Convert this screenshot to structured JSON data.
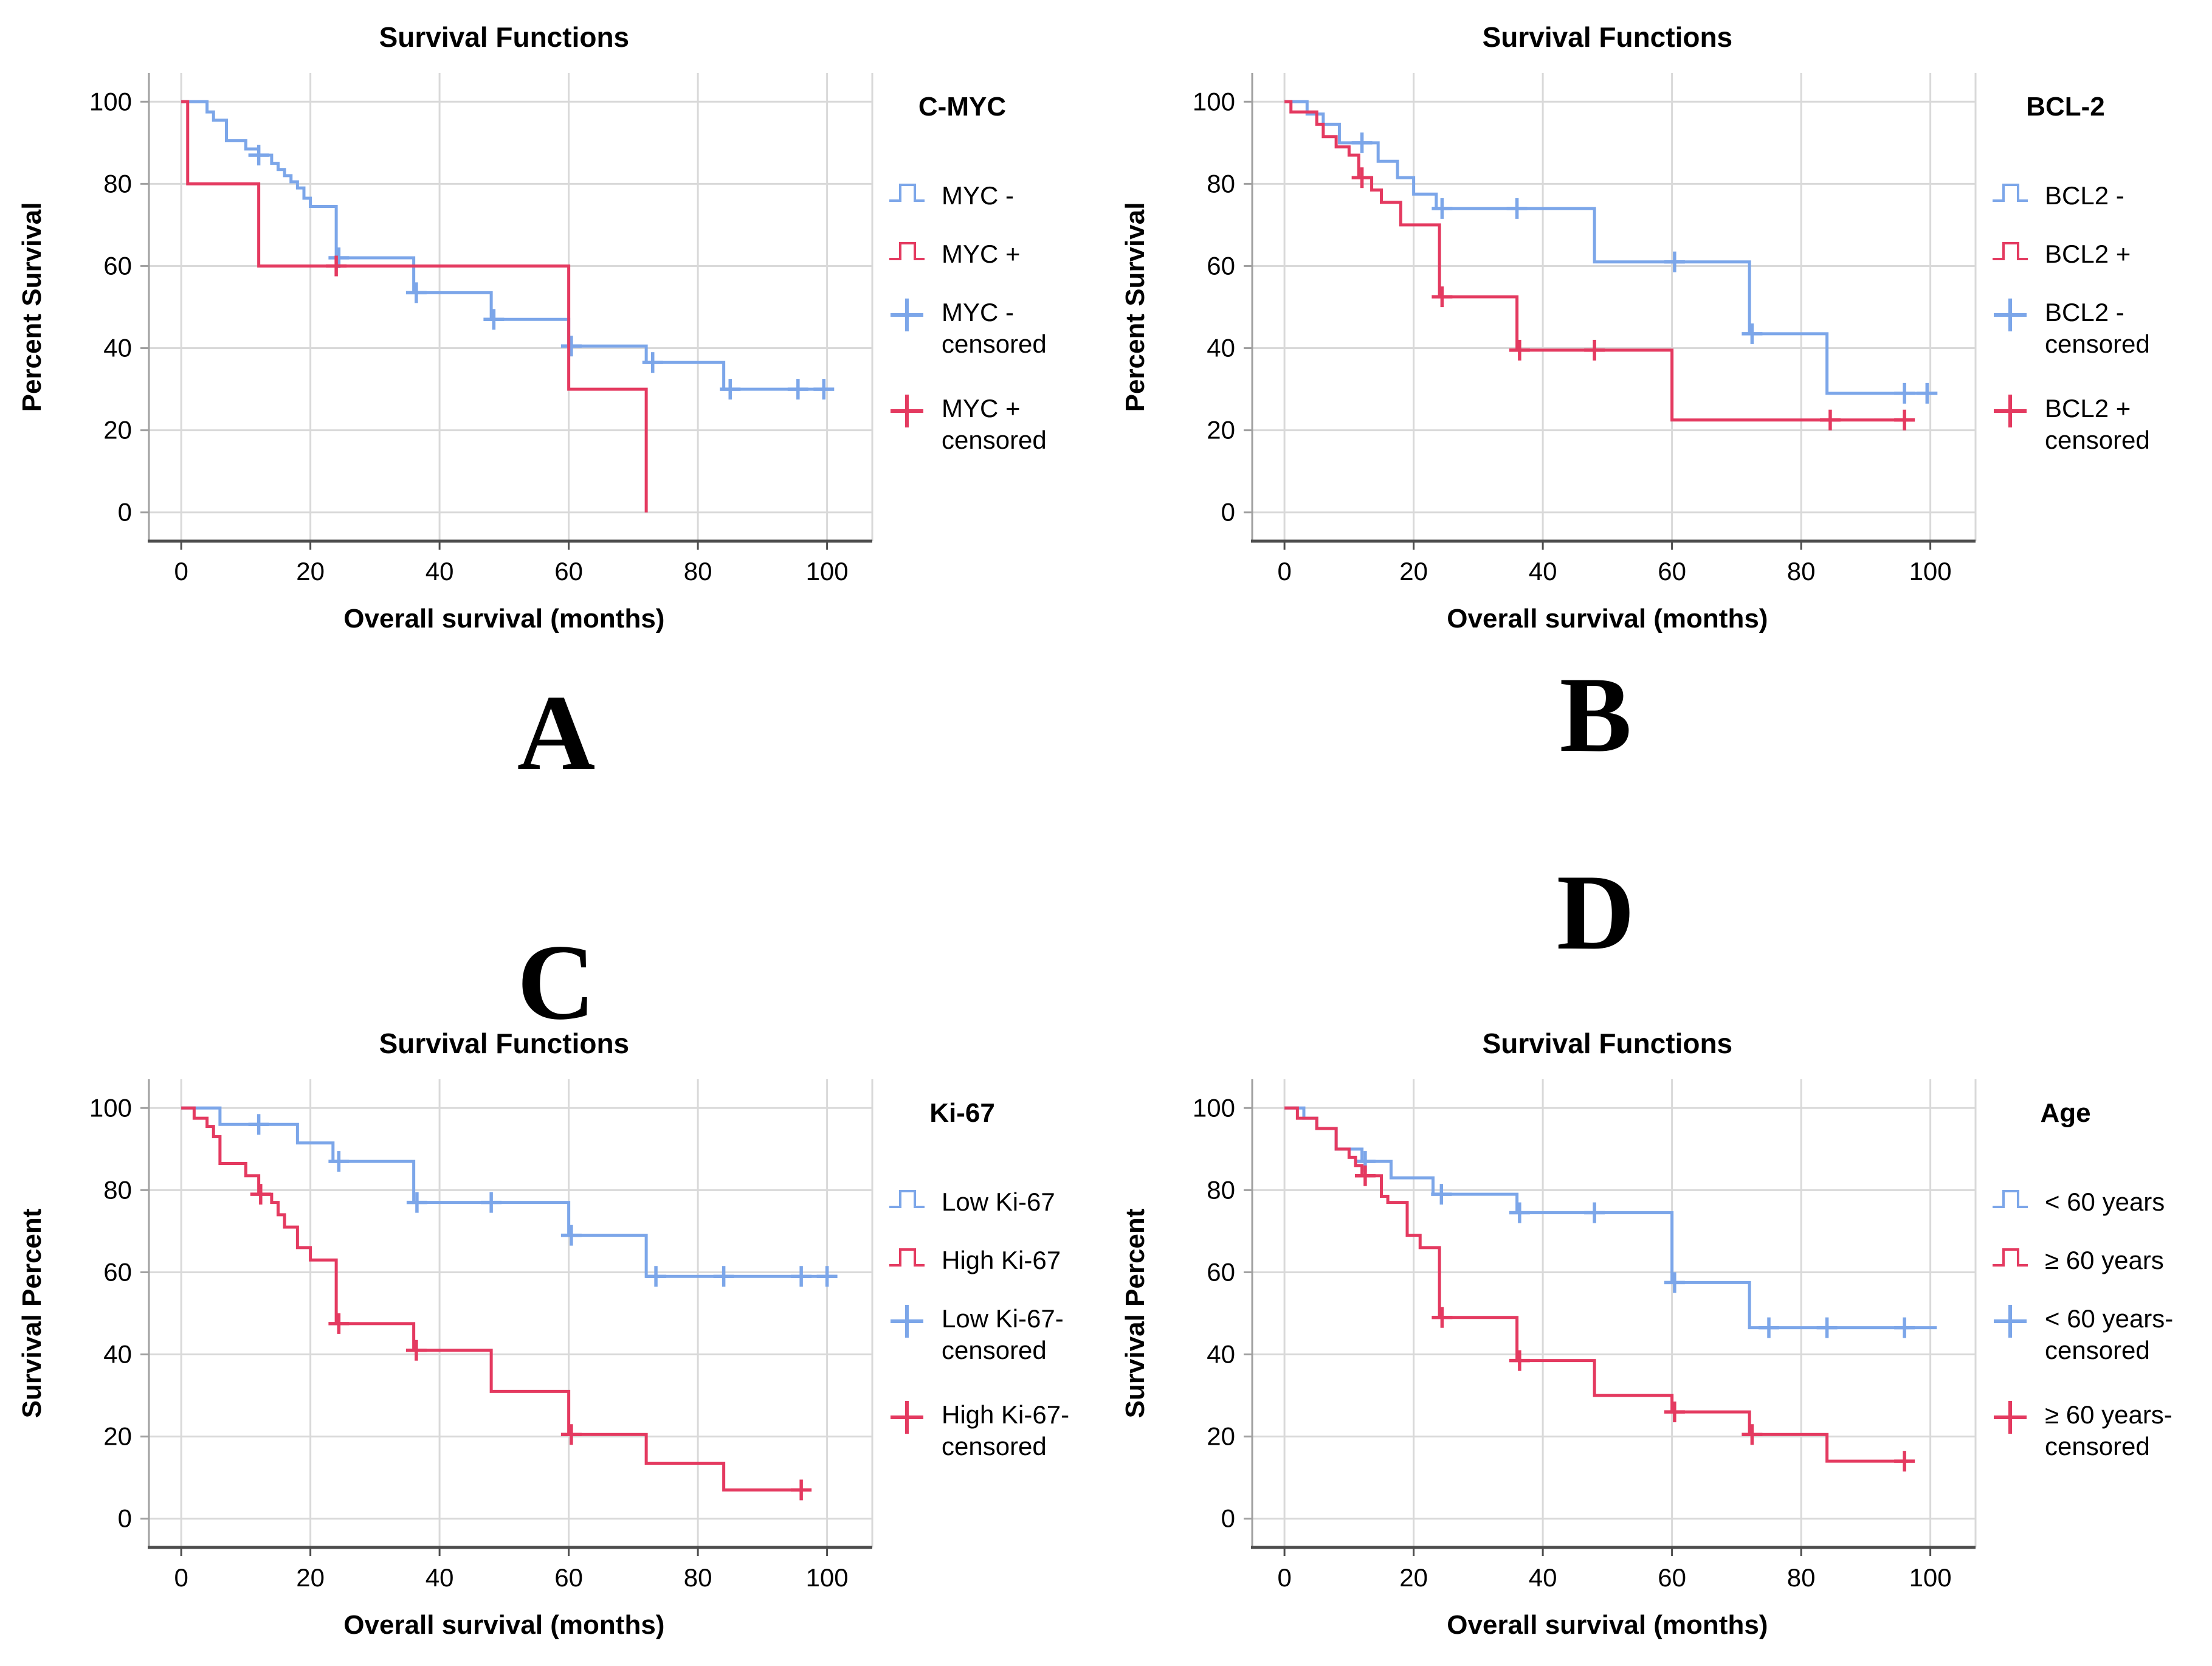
{
  "figure": {
    "background": "#ffffff",
    "title_repeated": "Survival Functions",
    "x_axis_label_repeated": "Overall survival (months)"
  },
  "colors": {
    "blue_series": "#7CA6E9",
    "red_series": "#E43A60",
    "grid": "#D9D9D9",
    "y_axis": "#A0A0A0",
    "x_axis": "#4D4D4D",
    "text": "#000000"
  },
  "axes": {
    "x_ticks": [
      0,
      20,
      40,
      60,
      80,
      100
    ],
    "y_ticks": [
      0,
      20,
      40,
      60,
      80,
      100
    ],
    "x_range": [
      -5,
      107
    ],
    "y_range": [
      -7,
      107
    ],
    "grid": true
  },
  "chart_data": [
    {
      "type": "line",
      "subtype": "kaplan_meier_step",
      "panel_letter": "A",
      "title": "Survival Functions",
      "xlabel": "Overall survival (months)",
      "ylabel": "Percent Survival",
      "legend_title": "C-MYC",
      "legend_position": "right",
      "xlim": [
        -5,
        107
      ],
      "ylim": [
        -7,
        107
      ],
      "series": [
        {
          "name": "MYC -",
          "color": "#7CA6E9",
          "steps": [
            [
              0,
              100
            ],
            [
              4,
              97.5
            ],
            [
              5,
              95.5
            ],
            [
              7,
              90.5
            ],
            [
              10,
              88.5
            ],
            [
              12,
              87
            ],
            [
              14,
              85
            ],
            [
              15,
              83.5
            ],
            [
              16,
              82
            ],
            [
              17,
              80.5
            ],
            [
              18,
              79
            ],
            [
              19,
              76.5
            ],
            [
              20,
              74.5
            ],
            [
              24,
              62
            ],
            [
              36,
              53.5
            ],
            [
              48,
              47
            ],
            [
              60,
              40.5
            ],
            [
              72,
              36.5
            ],
            [
              84,
              30
            ]
          ],
          "end_x": 100.5,
          "censored": [
            [
              12,
              87
            ],
            [
              24.4,
              62
            ],
            [
              36.4,
              53.5
            ],
            [
              48.4,
              47
            ],
            [
              60.4,
              40.5
            ],
            [
              73,
              36.5
            ],
            [
              85,
              30
            ],
            [
              95.5,
              30
            ],
            [
              99.5,
              30
            ]
          ]
        },
        {
          "name": "MYC +",
          "color": "#E43A60",
          "steps": [
            [
              0,
              100
            ],
            [
              1,
              80
            ],
            [
              12,
              60
            ],
            [
              60,
              30
            ],
            [
              72,
              0
            ]
          ],
          "end_x": 72,
          "censored": [
            [
              24,
              60
            ]
          ]
        }
      ],
      "legend": [
        {
          "glyph": "step",
          "color": "#7CA6E9",
          "lines": [
            "MYC -"
          ]
        },
        {
          "glyph": "step",
          "color": "#E43A60",
          "lines": [
            "MYC +"
          ]
        },
        {
          "glyph": "plus",
          "color": "#7CA6E9",
          "lines": [
            "MYC -",
            "censored"
          ]
        },
        {
          "glyph": "plus",
          "color": "#E43A60",
          "lines": [
            "MYC +",
            "censored"
          ]
        }
      ]
    },
    {
      "type": "line",
      "subtype": "kaplan_meier_step",
      "panel_letter": "B",
      "title": "Survival Functions",
      "xlabel": "Overall survival (months)",
      "ylabel": "Percent Survival",
      "legend_title": "BCL-2",
      "legend_position": "right",
      "xlim": [
        -5,
        107
      ],
      "ylim": [
        -7,
        107
      ],
      "series": [
        {
          "name": "BCL2 -",
          "color": "#7CA6E9",
          "steps": [
            [
              0,
              100
            ],
            [
              3.5,
              97
            ],
            [
              6,
              94.5
            ],
            [
              8.5,
              90
            ],
            [
              14.5,
              85.5
            ],
            [
              17.5,
              81.5
            ],
            [
              20,
              77.5
            ],
            [
              23.5,
              74
            ],
            [
              48,
              61
            ],
            [
              72,
              43.5
            ],
            [
              84,
              29
            ]
          ],
          "end_x": 101,
          "censored": [
            [
              12,
              90
            ],
            [
              24.4,
              74
            ],
            [
              36,
              74
            ],
            [
              60.4,
              61
            ],
            [
              72.4,
              43.5
            ],
            [
              96,
              29
            ],
            [
              99.5,
              29
            ]
          ]
        },
        {
          "name": "BCL2 +",
          "color": "#E43A60",
          "steps": [
            [
              0,
              100
            ],
            [
              1,
              97.5
            ],
            [
              5,
              94.5
            ],
            [
              6,
              91.5
            ],
            [
              8,
              89
            ],
            [
              10,
              87
            ],
            [
              11.5,
              81.5
            ],
            [
              13.5,
              78.5
            ],
            [
              15,
              75.5
            ],
            [
              18,
              70
            ],
            [
              24,
              52.5
            ],
            [
              36,
              39.5
            ],
            [
              60,
              22.5
            ]
          ],
          "end_x": 96.5,
          "censored": [
            [
              12,
              81.5
            ],
            [
              24.4,
              52.5
            ],
            [
              36.4,
              39.5
            ],
            [
              48,
              39.5
            ],
            [
              84.5,
              22.5
            ],
            [
              96,
              22.5
            ]
          ]
        }
      ],
      "legend": [
        {
          "glyph": "step",
          "color": "#7CA6E9",
          "lines": [
            "BCL2 -"
          ]
        },
        {
          "glyph": "step",
          "color": "#E43A60",
          "lines": [
            "BCL2 +"
          ]
        },
        {
          "glyph": "plus",
          "color": "#7CA6E9",
          "lines": [
            "BCL2 -",
            "censored"
          ]
        },
        {
          "glyph": "plus",
          "color": "#E43A60",
          "lines": [
            "BCL2 +",
            "censored"
          ]
        }
      ]
    },
    {
      "type": "line",
      "subtype": "kaplan_meier_step",
      "panel_letter": "C",
      "title": "Survival Functions",
      "xlabel": "Overall survival (months)",
      "ylabel": "Survival Percent",
      "legend_title": "Ki-67",
      "legend_position": "right",
      "xlim": [
        -5,
        107
      ],
      "ylim": [
        -7,
        107
      ],
      "series": [
        {
          "name": "Low Ki-67",
          "color": "#7CA6E9",
          "steps": [
            [
              0,
              100
            ],
            [
              6,
              96
            ],
            [
              18,
              91.5
            ],
            [
              23.5,
              87
            ],
            [
              36,
              77
            ],
            [
              60,
              69
            ],
            [
              72,
              59
            ]
          ],
          "end_x": 101,
          "censored": [
            [
              12,
              96
            ],
            [
              24.4,
              87
            ],
            [
              36.5,
              77
            ],
            [
              48,
              77
            ],
            [
              60.4,
              69
            ],
            [
              73.5,
              59
            ],
            [
              84,
              59
            ],
            [
              96,
              59
            ],
            [
              100,
              59
            ]
          ]
        },
        {
          "name": "High Ki-67",
          "color": "#E43A60",
          "steps": [
            [
              0,
              100
            ],
            [
              2,
              97.5
            ],
            [
              4,
              95.5
            ],
            [
              5,
              93
            ],
            [
              6,
              86.5
            ],
            [
              10,
              83.5
            ],
            [
              12,
              79
            ],
            [
              14,
              77
            ],
            [
              15,
              74
            ],
            [
              16,
              71
            ],
            [
              18,
              66
            ],
            [
              20,
              63
            ],
            [
              24,
              47.5
            ],
            [
              36,
              41
            ],
            [
              48,
              31
            ],
            [
              60,
              20.5
            ],
            [
              72,
              13.5
            ],
            [
              84,
              7
            ]
          ],
          "end_x": 97,
          "censored": [
            [
              12.3,
              79
            ],
            [
              24.4,
              47.5
            ],
            [
              36.4,
              41
            ],
            [
              60.4,
              20.5
            ],
            [
              96,
              7
            ]
          ]
        }
      ],
      "legend": [
        {
          "glyph": "step",
          "color": "#7CA6E9",
          "lines": [
            "Low Ki-67"
          ]
        },
        {
          "glyph": "step",
          "color": "#E43A60",
          "lines": [
            "High Ki-67"
          ]
        },
        {
          "glyph": "plus",
          "color": "#7CA6E9",
          "lines": [
            "Low Ki-67-",
            "censored"
          ]
        },
        {
          "glyph": "plus",
          "color": "#E43A60",
          "lines": [
            "High Ki-67-",
            "censored"
          ]
        }
      ]
    },
    {
      "type": "line",
      "subtype": "kaplan_meier_step",
      "panel_letter": "D",
      "title": "Survival Functions",
      "xlabel": "Overall survival (months)",
      "ylabel": "Survival Percent",
      "legend_title": "Age",
      "legend_position": "right",
      "xlim": [
        -5,
        107
      ],
      "ylim": [
        -7,
        107
      ],
      "series": [
        {
          "name": "< 60 years",
          "color": "#7CA6E9",
          "steps": [
            [
              0,
              100
            ],
            [
              3,
              97.5
            ],
            [
              5,
              95
            ],
            [
              8,
              90
            ],
            [
              12,
              87
            ],
            [
              16.5,
              83
            ],
            [
              23,
              79
            ],
            [
              36,
              74.5
            ],
            [
              60,
              57.5
            ],
            [
              72,
              46.5
            ]
          ],
          "end_x": 101,
          "censored": [
            [
              12.5,
              87
            ],
            [
              24.3,
              79
            ],
            [
              36.4,
              74.5
            ],
            [
              48,
              74.5
            ],
            [
              60.4,
              57.5
            ],
            [
              75,
              46.5
            ],
            [
              84,
              46.5
            ],
            [
              96,
              46.5
            ]
          ]
        },
        {
          "name": "≥ 60 years",
          "color": "#E43A60",
          "steps": [
            [
              0,
              100
            ],
            [
              2,
              97.5
            ],
            [
              5,
              95
            ],
            [
              8,
              90
            ],
            [
              10,
              88
            ],
            [
              11,
              86
            ],
            [
              12,
              83.5
            ],
            [
              15,
              78.5
            ],
            [
              16,
              77
            ],
            [
              19,
              69
            ],
            [
              21,
              66
            ],
            [
              24,
              49
            ],
            [
              36,
              38.5
            ],
            [
              48,
              30
            ],
            [
              60,
              26
            ],
            [
              72,
              20.5
            ],
            [
              84,
              14
            ]
          ],
          "end_x": 96.5,
          "censored": [
            [
              12.5,
              83.5
            ],
            [
              24.4,
              49
            ],
            [
              36.4,
              38.5
            ],
            [
              60.4,
              26
            ],
            [
              72.4,
              20.5
            ],
            [
              96,
              14
            ]
          ]
        }
      ],
      "legend": [
        {
          "glyph": "step",
          "color": "#7CA6E9",
          "lines": [
            "< 60 years"
          ]
        },
        {
          "glyph": "step",
          "color": "#E43A60",
          "lines": [
            "≥ 60 years"
          ]
        },
        {
          "glyph": "plus",
          "color": "#7CA6E9",
          "lines": [
            "< 60 years-",
            "censored"
          ]
        },
        {
          "glyph": "plus",
          "color": "#E43A60",
          "lines": [
            "≥ 60 years-",
            "censored"
          ]
        }
      ]
    }
  ]
}
